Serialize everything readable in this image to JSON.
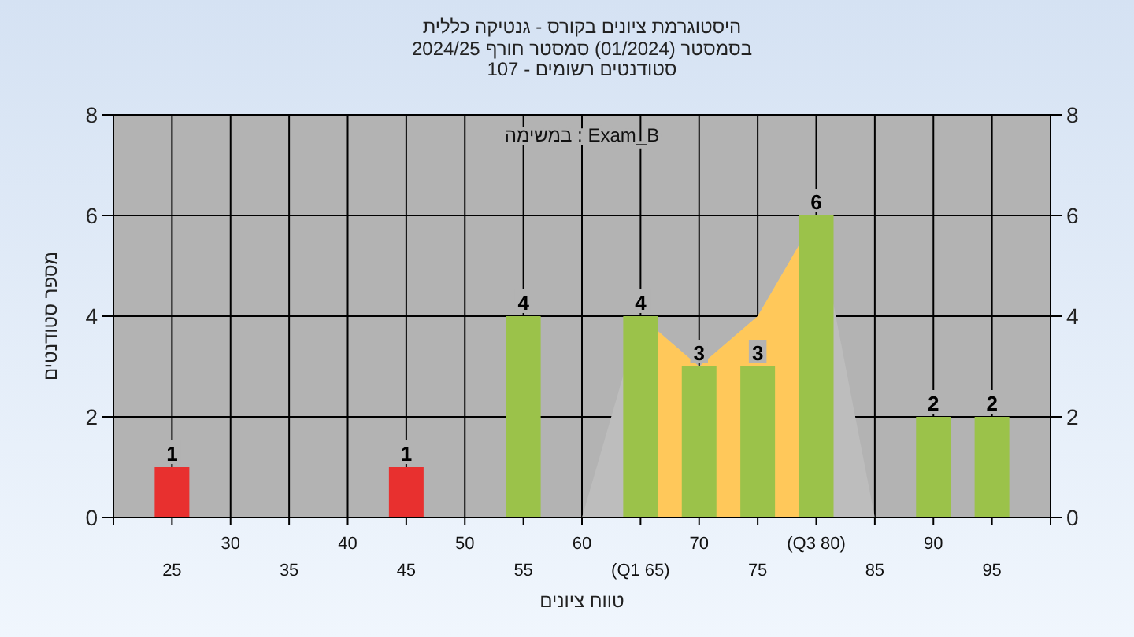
{
  "chart_data": {
    "type": "bar",
    "title": "היסטוגרמת ציונים בקורס - גנטיקה כללית",
    "subtitle": "בסמסטר (01/2024) סמסטר חורף 2024/25\nסטודנטים רשומים - 107",
    "xlabel": "טווח ציונים",
    "ylabel": "מספר סטודנטים",
    "annotations": [
      "במשימה : Exam_B"
    ],
    "categories": [
      "25",
      "30",
      "35",
      "40",
      "45",
      "50",
      "55",
      "60",
      "(Q1 65)",
      "70",
      "75",
      "(Q3 80)",
      "85",
      "90",
      "95"
    ],
    "series": [
      {
        "type": "area",
        "color": "#bdbdbd",
        "values": [
          null,
          null,
          null,
          null,
          null,
          null,
          null,
          0,
          4,
          3,
          4,
          6,
          0,
          null,
          null
        ]
      },
      {
        "type": "area",
        "color": "#ffc85a",
        "values": [
          null,
          null,
          null,
          null,
          null,
          null,
          null,
          null,
          4,
          3,
          4,
          6,
          null,
          null,
          null
        ]
      },
      {
        "type": "bar",
        "colors": [
          "#e8302f",
          "#e8302f",
          "#e8302f",
          "#e8302f",
          "#e8302f",
          "#9bc24a",
          "#9bc24a",
          "#9bc24a",
          "#9bc24a",
          "#9bc24a",
          "#9bc24a",
          "#9bc24a",
          "#9bc24a",
          "#9bc24a",
          "#9bc24a"
        ],
        "values": [
          1,
          0,
          0,
          0,
          1,
          0,
          4,
          0,
          4,
          3,
          3,
          6,
          0,
          2,
          2
        ],
        "value_labels": [
          "1",
          null,
          null,
          null,
          "1",
          null,
          "4",
          null,
          "4",
          "3",
          "3",
          "6",
          null,
          "2",
          "2"
        ]
      }
    ],
    "ylim": [
      0,
      8
    ],
    "yticks": [
      0,
      2,
      4,
      6,
      8
    ],
    "y2lim": [
      0,
      8
    ],
    "y2ticks": [
      0,
      2,
      4,
      6,
      8
    ],
    "grid": true
  }
}
